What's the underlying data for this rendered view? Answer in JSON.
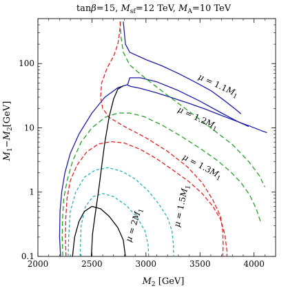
{
  "chart_data": {
    "type": "line",
    "title_parts": [
      "tan",
      "β",
      "=15, ",
      "M",
      "sf",
      "=12 TeV, ",
      "M",
      "A",
      "=10 TeV"
    ],
    "xlabel_parts": [
      "M",
      "2",
      " [GeV]"
    ],
    "ylabel_parts": [
      "M",
      "1",
      "−",
      "M",
      "2",
      "[GeV]"
    ],
    "x_ticks": [
      2000,
      2500,
      3000,
      3500,
      4000
    ],
    "y_ticks": [
      0.1,
      1,
      10,
      100
    ],
    "xlim": [
      2000,
      4200
    ],
    "ylim": [
      0.1,
      500
    ],
    "y_scale": "log",
    "series": [
      {
        "label_parts": [
          "μ",
          " = 1.1",
          "M",
          "1"
        ],
        "color": "#1a1aa8",
        "dash": "",
        "label_at": [
          3660,
          42
        ],
        "label_rotate": 25,
        "segments": [
          [
            [
              2210,
              0.1
            ],
            [
              2200,
              0.2
            ],
            [
              2205,
              0.5
            ],
            [
              2220,
              1.0
            ],
            [
              2250,
              2.0
            ],
            [
              2300,
              4.0
            ],
            [
              2380,
              8.0
            ],
            [
              2500,
              17
            ],
            [
              2620,
              30
            ],
            [
              2740,
              42
            ],
            [
              2830,
              47
            ],
            [
              2850,
              60
            ],
            [
              2950,
              60
            ],
            [
              3100,
              52
            ],
            [
              3300,
              38
            ],
            [
              3500,
              26
            ],
            [
              3700,
              17
            ],
            [
              3850,
              12.5
            ],
            [
              3950,
              10.5
            ]
          ],
          [
            [
              2790,
              450
            ],
            [
              2800,
              300
            ],
            [
              2810,
              200
            ],
            [
              2850,
              150
            ],
            [
              3000,
              115
            ],
            [
              3150,
              92
            ],
            [
              3300,
              70
            ],
            [
              3450,
              52
            ],
            [
              3600,
              38
            ],
            [
              3720,
              27
            ],
            [
              3820,
              20
            ],
            [
              3880,
              16.5
            ]
          ],
          [
            [
              2830,
              46
            ],
            [
              2860,
              44
            ],
            [
              2950,
              41
            ],
            [
              3100,
              35
            ],
            [
              3250,
              29
            ],
            [
              3400,
              24
            ],
            [
              3550,
              19.5
            ],
            [
              3680,
              16
            ],
            [
              3820,
              13
            ],
            [
              3950,
              10.8
            ],
            [
              4070,
              9
            ],
            [
              4120,
              8.4
            ]
          ]
        ]
      },
      {
        "label_parts": [
          "μ",
          " = 1.2",
          "M",
          "1"
        ],
        "color": "#22a022",
        "dash": "7,4",
        "label_at": [
          3470,
          13
        ],
        "label_rotate": 25,
        "segments": [
          [
            [
              2230,
              0.1
            ],
            [
              2225,
              0.2
            ],
            [
              2228,
              0.4
            ],
            [
              2240,
              0.8
            ],
            [
              2270,
              1.5
            ],
            [
              2320,
              3.0
            ],
            [
              2400,
              6.0
            ],
            [
              2500,
              10
            ],
            [
              2620,
              14.5
            ],
            [
              2740,
              17
            ],
            [
              2850,
              17
            ],
            [
              2980,
              15
            ],
            [
              3150,
              11
            ],
            [
              3320,
              7.5
            ],
            [
              3500,
              4.8
            ],
            [
              3650,
              3.2
            ],
            [
              3780,
              2.1
            ],
            [
              3880,
              1.4
            ],
            [
              3960,
              0.9
            ],
            [
              4020,
              0.55
            ],
            [
              4060,
              0.35
            ]
          ],
          [
            [
              2760,
              450
            ],
            [
              2770,
              250
            ],
            [
              2790,
              150
            ],
            [
              2850,
              95
            ],
            [
              3000,
              58
            ],
            [
              3200,
              32
            ],
            [
              3400,
              18
            ],
            [
              3600,
              10
            ],
            [
              3800,
              5.5
            ],
            [
              3950,
              3.0
            ],
            [
              4050,
              1.8
            ],
            [
              4100,
              1.2
            ]
          ]
        ]
      },
      {
        "label_parts": [
          "μ",
          " = 1.3",
          "M",
          "1"
        ],
        "color": "#e02020",
        "dash": "6,3",
        "label_at": [
          3510,
          2.3
        ],
        "label_rotate": 28,
        "segments": [
          [
            [
              2260,
              0.1
            ],
            [
              2255,
              0.2
            ],
            [
              2258,
              0.4
            ],
            [
              2270,
              0.8
            ],
            [
              2300,
              1.5
            ],
            [
              2360,
              2.6
            ],
            [
              2450,
              4.2
            ],
            [
              2560,
              5.6
            ],
            [
              2680,
              6.1
            ],
            [
              2800,
              5.8
            ],
            [
              2950,
              4.6
            ],
            [
              3100,
              3.3
            ],
            [
              3250,
              2.2
            ],
            [
              3400,
              1.45
            ],
            [
              3520,
              0.95
            ],
            [
              3620,
              0.6
            ],
            [
              3690,
              0.38
            ],
            [
              3730,
              0.22
            ],
            [
              3750,
              0.12
            ],
            [
              3750,
              0.1
            ]
          ],
          [
            [
              2765,
              450
            ],
            [
              2755,
              300
            ],
            [
              2740,
              200
            ],
            [
              2700,
              130
            ],
            [
              2640,
              85
            ],
            [
              2590,
              50
            ],
            [
              2580,
              30
            ],
            [
              2600,
              20
            ],
            [
              2660,
              14.5
            ],
            [
              2800,
              10.5
            ],
            [
              3000,
              7
            ],
            [
              3200,
              4.3
            ],
            [
              3380,
              2.5
            ],
            [
              3520,
              1.4
            ],
            [
              3620,
              0.75
            ],
            [
              3690,
              0.42
            ],
            [
              3710,
              0.25
            ],
            [
              3715,
              0.15
            ],
            [
              3710,
              0.1
            ]
          ]
        ]
      },
      {
        "label_parts": [
          "μ",
          " = 1.5",
          "M",
          "1"
        ],
        "color": "#20b0c0",
        "dash": "4,3",
        "label_at": [
          3350,
          0.6
        ],
        "label_rotate": -78,
        "segments": [
          [
            [
              2280,
              0.1
            ],
            [
              2285,
              0.2
            ],
            [
              2300,
              0.5
            ],
            [
              2350,
              1.0
            ],
            [
              2430,
              1.7
            ],
            [
              2530,
              2.2
            ],
            [
              2650,
              2.4
            ],
            [
              2780,
              2.1
            ],
            [
              2900,
              1.6
            ],
            [
              3020,
              1.05
            ],
            [
              3120,
              0.65
            ],
            [
              3200,
              0.4
            ],
            [
              3240,
              0.25
            ],
            [
              3255,
              0.15
            ],
            [
              3255,
              0.1
            ]
          ],
          [
            [
              2390,
              0.1
            ],
            [
              2400,
              0.3
            ],
            [
              2440,
              0.6
            ],
            [
              2510,
              0.85
            ],
            [
              2600,
              0.95
            ],
            [
              2700,
              0.85
            ],
            [
              2820,
              0.62
            ],
            [
              2920,
              0.4
            ],
            [
              2990,
              0.25
            ],
            [
              3020,
              0.15
            ],
            [
              3025,
              0.1
            ]
          ]
        ]
      },
      {
        "label_parts": [
          "μ",
          " = 2",
          "M",
          "1"
        ],
        "color": "#000000",
        "dash": "",
        "label_at": [
          2910,
          0.3
        ],
        "label_rotate": -72,
        "segments": [
          [
            [
              2790,
              45
            ],
            [
              2740,
              40
            ],
            [
              2700,
              28
            ],
            [
              2660,
              15
            ],
            [
              2620,
              6
            ],
            [
              2590,
              2.5
            ],
            [
              2560,
              1.0
            ],
            [
              2530,
              0.45
            ],
            [
              2505,
              0.22
            ],
            [
              2495,
              0.1
            ]
          ],
          [
            [
              2320,
              0.1
            ],
            [
              2340,
              0.2
            ],
            [
              2380,
              0.35
            ],
            [
              2430,
              0.5
            ],
            [
              2500,
              0.6
            ],
            [
              2580,
              0.55
            ],
            [
              2660,
              0.42
            ],
            [
              2740,
              0.28
            ],
            [
              2790,
              0.18
            ],
            [
              2810,
              0.1
            ]
          ]
        ]
      }
    ]
  }
}
